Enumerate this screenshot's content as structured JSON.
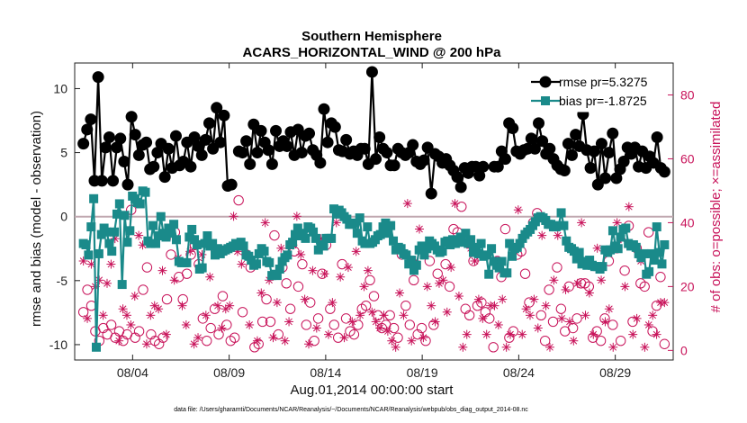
{
  "chart_data": {
    "type": "line",
    "title": "Southern Hemisphere",
    "subtitle": "ACARS_HORIZONTAL_WIND @ 200 hPa",
    "xlabel": "Aug.01,2014 00:00:00 start",
    "ylabel": "rmse and bias (model - observation)",
    "ylabel_right": "# of obs: o=possible; ×=assimilated",
    "footnote": "data file: /Users/gharamti/Documents/NCAR/Reanalysis/~/Documents/NCAR/Reanalysis/webpub/obs_diag_output_2014-08.nc",
    "xlim": [
      1.0,
      32.0
    ],
    "ylim": [
      -11.2,
      12.0
    ],
    "ylim_right": [
      -3.0,
      90.0
    ],
    "x_ticks": [
      4,
      9,
      14,
      19,
      24,
      29
    ],
    "x_tick_labels": [
      "08/04",
      "08/09",
      "08/14",
      "08/19",
      "08/24",
      "08/29"
    ],
    "y_ticks": [
      -10,
      -5,
      0,
      5,
      10
    ],
    "y_tick_labels": [
      "-10",
      "-5",
      "0",
      "5",
      "10"
    ],
    "y_ticks_right": [
      0,
      20,
      40,
      60,
      80
    ],
    "y_tick_labels_right": [
      "0",
      "20",
      "40",
      "60",
      "80"
    ],
    "zero_line": 0,
    "legend": {
      "position": "top-right",
      "entries": [
        "rmse pr=5.3275",
        "bias pr=-1.8725"
      ]
    },
    "colors": {
      "rmse": "#000000",
      "bias": "#1a8a8a",
      "obs": "#c8135a",
      "zero": "#c0a8b0"
    },
    "series": [
      {
        "name": "rmse",
        "marker": "circle",
        "values": [
          5.7,
          6.8,
          7.6,
          2.8,
          10.9,
          2.8,
          5.4,
          6.2,
          2.8,
          5.4,
          6.1,
          4.3,
          2.5,
          7.8,
          6.4,
          4.8,
          5.6,
          5.8,
          3.7,
          3.9,
          5.0,
          5.7,
          3.1,
          5.3,
          3.8,
          6.3,
          4.0,
          4.3,
          5.8,
          3.9,
          6.2,
          5.5,
          4.8,
          6.0,
          7.3,
          5.3,
          8.5,
          5.8,
          7.9,
          2.4,
          2.5,
          null,
          5.1,
          5.0,
          5.9,
          4.1,
          7.2,
          5.0,
          6.7,
          5.8,
          5.2,
          4.1,
          6.7,
          5.5,
          5.9,
          5.5,
          6.6,
          4.8,
          6.8,
          5.0,
          6.3,
          6.5,
          5.2,
          4.8,
          4.2,
          8.4,
          5.8,
          7.3,
          7.0,
          5.2,
          5.1,
          6.0,
          4.9,
          5.1,
          4.8,
          5.3,
          5.3,
          4.1,
          11.3,
          4.5,
          6.2,
          5.3,
          5.0,
          4.0,
          4.0,
          5.3,
          5.0,
          4.8,
          5.0,
          5.6,
          4.3,
          4.1,
          4.4,
          5.4,
          1.8,
          4.9,
          4.7,
          4.2,
          4.5,
          4.0,
          3.6,
          3.1,
          2.3,
          3.8,
          3.4,
          3.9,
          3.9,
          3.2,
          3.9,
          null,
          null,
          3.9,
          3.9,
          5.1,
          4.5,
          7.3,
          6.9,
          5.1,
          4.9,
          5.2,
          5.3,
          6.1,
          5.3,
          7.3,
          5.9,
          4.9,
          5.3,
          4.5,
          4.0,
          3.7,
          3.6,
          5.7,
          4.8,
          6.4,
          5.5,
          8.0,
          5.2,
          3.8,
          5.1,
          2.5,
          5.7,
          3.0,
          5.0,
          6.5,
          3.0,
          3.7,
          4.3,
          5.4,
          4.9,
          5.4,
          3.9,
          5.1,
          3.8,
          4.7,
          4.2,
          6.2,
          3.8,
          3.5
        ]
      },
      {
        "name": "bias",
        "marker": "square",
        "values": [
          -2.1,
          -2.2,
          -3.0,
          -0.8,
          1.4,
          -10.2,
          -2.9,
          -1.4,
          -0.9,
          -1.2,
          -2.1,
          -2.7,
          -1.2,
          0.2,
          1.0,
          -5.3,
          0.1,
          -2.0,
          -1.1,
          1.6,
          1.4,
          1.1,
          1.0,
          2.0,
          1.9,
          -1.9,
          -2.1,
          -0.7,
          -2.1,
          -1.5,
          0.0,
          -1.3,
          -1.6,
          -0.9,
          -1.3,
          -0.6,
          -1.8,
          -3.5,
          -3.6,
          -3.6,
          -3.6,
          -1.6,
          -1.0,
          -1.8,
          -2.2,
          -4.1,
          -4.0,
          -2.1,
          -1.5,
          -2.3,
          -2.1,
          -3.0,
          -2.5,
          -2.9,
          -2.7,
          -2.6,
          -2.5,
          -2.4,
          -2.3,
          -2.1,
          -2.3,
          -2.0,
          -2.3,
          -3.0,
          -3.1,
          -3.4,
          -3.8,
          -3.7,
          -2.9,
          -2.5,
          -2.7,
          -3.5,
          -3.6,
          -4.6,
          -4.5,
          -4.6,
          -4.1,
          -3.5,
          -3.2,
          -3.0,
          -2.2,
          -2.0,
          -1.4,
          -0.9,
          -1.5,
          -1.3,
          -1.7,
          -0.8,
          -0.9,
          -1.2,
          -1.7,
          -2.6,
          -2.2,
          -2.3,
          -1.7,
          -1.7,
          -1.7,
          0.6,
          0.2,
          0.5,
          0.3,
          0.0,
          -0.2,
          -0.6,
          -0.6,
          -0.5,
          -1.3,
          -0.1,
          -1.9,
          -2.1,
          -0.8,
          -2.1,
          -2.0,
          -1.8,
          -1.5,
          -1.4,
          -0.8,
          -0.5,
          -1.3,
          -0.7,
          -1.9,
          -2.6,
          -2.4,
          -2.5,
          -2.9,
          -3.0,
          -3.7,
          -3.4,
          -4.2,
          -3.8,
          -2.6,
          -2.3,
          -3.0,
          -2.5,
          -1.9,
          -2.1,
          -2.3,
          -2.6,
          -2.8,
          -2.7,
          -2.0,
          -1.9,
          -2.2,
          -1.8,
          -2.1,
          -2.0,
          -1.6,
          -2.0,
          -1.3,
          -2.1,
          -1.8,
          -2.8,
          -2.4,
          -2.9,
          -2.1,
          -3.1,
          -3.0,
          -4.5,
          -2.5,
          -3.5,
          -3.8,
          -4.0,
          -3.5,
          -4.4,
          -4.4,
          -2.1,
          -3.1,
          -2.5,
          -2.4,
          -2.1,
          -1.7,
          -1.4,
          -1.2,
          -1.0,
          -0.7,
          -0.4,
          -0.1,
          0.0,
          -0.1,
          -0.3,
          -0.6,
          -0.6,
          -0.8,
          -0.8,
          -0.7,
          0.3,
          -0.7,
          -1.9,
          -2.4,
          -2.5,
          -2.7,
          -3.3,
          -2.8,
          -3.7,
          -3.5,
          -3.8,
          -3.4,
          -3.8,
          -3.9,
          -3.9,
          -4.1,
          -3.9,
          -2.6,
          -2.8,
          -2.6,
          -1.1,
          -2.3,
          -2.5,
          -1.6,
          -1.0,
          -0.9,
          -2.1,
          -2.3,
          -2.2,
          -2.4,
          -2.9,
          -3.2,
          -2.9,
          -4.5,
          -4.3,
          -2.9,
          -3.4,
          -0.8,
          -2.8,
          -3.7,
          -2.2
        ]
      }
    ],
    "obs_possible": [
      12,
      19,
      14,
      6,
      3,
      7,
      5,
      8,
      4,
      6,
      3,
      5,
      44,
      4,
      6,
      19,
      26,
      5,
      3,
      2,
      4,
      16,
      30,
      37,
      23,
      16,
      24,
      30,
      33,
      27,
      10,
      3,
      7,
      13,
      5,
      17,
      8,
      3,
      4,
      47,
      12,
      30,
      26,
      1,
      2,
      9,
      16,
      9,
      36,
      5,
      26,
      21,
      13,
      31,
      20,
      27,
      8,
      15,
      3,
      10,
      24,
      33,
      13,
      8,
      4,
      27,
      10,
      6,
      5,
      8,
      13,
      14,
      22,
      17,
      11,
      7,
      8,
      11,
      7,
      4,
      30,
      14,
      8,
      22,
      5,
      7,
      3,
      28,
      8,
      24,
      31,
      27,
      20,
      38,
      37,
      45,
      13,
      11,
      28,
      14,
      15,
      12,
      10,
      1,
      28,
      23,
      38,
      4,
      6,
      30,
      31,
      24,
      15,
      40,
      43,
      11,
      3,
      19,
      9,
      26,
      13,
      6,
      20,
      7,
      10,
      21,
      21,
      20,
      4,
      6,
      3,
      10,
      28,
      8,
      32,
      3,
      25,
      39,
      9,
      32,
      21,
      20,
      37,
      6,
      14,
      23,
      2
    ],
    "obs_assimilated": [
      28,
      10,
      27,
      20,
      22,
      11,
      21,
      27,
      35,
      3,
      13,
      11,
      8,
      17,
      36,
      33,
      2,
      11,
      14,
      13,
      25,
      5,
      36,
      22,
      29,
      14,
      8,
      31,
      2,
      4,
      30,
      11,
      23,
      32,
      14,
      7,
      13,
      14,
      42,
      31,
      27,
      30,
      8,
      27,
      3,
      18,
      40,
      22,
      4,
      15,
      32,
      3,
      9,
      33,
      42,
      30,
      16,
      2,
      25,
      7,
      35,
      24,
      5,
      15,
      40,
      23,
      4,
      26,
      9,
      31,
      11,
      20,
      25,
      12,
      9,
      7,
      11,
      6,
      3,
      1,
      18,
      11,
      46,
      3,
      28,
      38,
      4,
      20,
      14,
      9,
      21,
      22,
      12,
      26,
      46,
      17,
      1,
      5,
      32,
      28,
      16,
      10,
      5,
      14,
      14,
      8,
      16,
      1,
      5,
      32,
      44,
      5,
      13,
      11,
      16,
      7,
      36,
      14,
      1,
      22,
      36,
      10,
      19,
      9,
      3,
      21,
      40,
      11,
      18,
      5,
      32,
      22,
      9,
      13,
      1,
      40,
      35,
      20,
      45,
      5,
      10,
      28,
      1,
      8,
      11,
      5,
      15,
      15
    ]
  }
}
